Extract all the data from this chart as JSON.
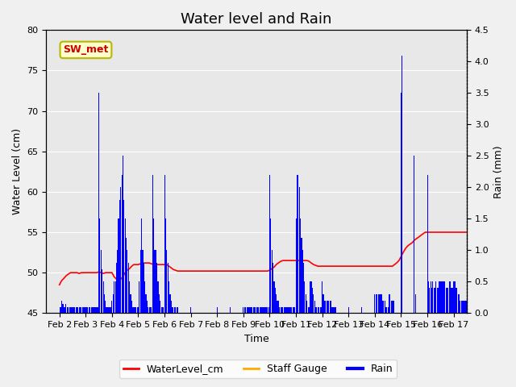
{
  "title": "Water level and Rain",
  "xlabel": "Time",
  "ylabel_left": "Water Level (cm)",
  "ylabel_right": "Rain (mm)",
  "ylim_left": [
    45,
    80
  ],
  "ylim_right": [
    0.0,
    4.5
  ],
  "yticks_left": [
    45,
    50,
    55,
    60,
    65,
    70,
    75,
    80
  ],
  "yticks_right": [
    0.0,
    0.5,
    1.0,
    1.5,
    2.0,
    2.5,
    3.0,
    3.5,
    4.0,
    4.5
  ],
  "background_color": "#f0f0f0",
  "plot_bg_color": "#e8e8e8",
  "annotation_box_text": "SW_met",
  "annotation_box_facecolor": "#ffffcc",
  "annotation_box_edgecolor": "#b8b800",
  "annotation_text_color": "#cc0000",
  "water_level_color": "#ff0000",
  "rain_color": "#0000ff",
  "staff_gauge_color": "#ffaa00",
  "legend_labels": [
    "WaterLevel_cm",
    "Staff Gauge",
    "Rain"
  ],
  "title_fontsize": 13,
  "axis_label_fontsize": 9,
  "tick_fontsize": 8,
  "x_tick_labels": [
    "Feb 2",
    "Feb 3",
    "Feb 4",
    "Feb 5",
    "Feb 6",
    "Feb 7",
    "Feb 8",
    "Feb 9",
    "Feb 10",
    "Feb 11",
    "Feb 12",
    "Feb 13",
    "Feb 14",
    "Feb 15",
    "Feb 16",
    "Feb 17"
  ],
  "x_tick_positions": [
    0,
    1,
    2,
    3,
    4,
    5,
    6,
    7,
    8,
    9,
    10,
    11,
    12,
    13,
    14,
    15
  ],
  "x_range": [
    -0.5,
    15.5
  ],
  "water_level_times": [
    0.0,
    0.08,
    0.17,
    0.25,
    0.33,
    0.42,
    0.5,
    0.58,
    0.67,
    0.75,
    0.83,
    0.92,
    1.0,
    1.08,
    1.17,
    1.25,
    1.33,
    1.42,
    1.5,
    1.58,
    1.67,
    1.75,
    1.83,
    1.92,
    2.0,
    2.08,
    2.17,
    2.25,
    2.33,
    2.42,
    2.5,
    2.58,
    2.67,
    2.75,
    2.83,
    2.92,
    3.0,
    3.08,
    3.17,
    3.25,
    3.33,
    3.42,
    3.5,
    3.58,
    3.67,
    3.75,
    3.83,
    3.92,
    4.0,
    4.08,
    4.17,
    4.25,
    4.33,
    4.42,
    4.5,
    4.58,
    4.67,
    4.75,
    4.83,
    4.92,
    5.0,
    5.08,
    5.17,
    5.25,
    5.33,
    5.42,
    5.5,
    5.58,
    5.67,
    5.75,
    5.83,
    5.92,
    6.0,
    6.08,
    6.17,
    6.25,
    6.33,
    6.42,
    6.5,
    6.58,
    6.67,
    6.75,
    6.83,
    6.92,
    7.0,
    7.08,
    7.17,
    7.25,
    7.33,
    7.42,
    7.5,
    7.58,
    7.67,
    7.75,
    7.83,
    7.92,
    8.0,
    8.08,
    8.17,
    8.25,
    8.33,
    8.42,
    8.5,
    8.58,
    8.67,
    8.75,
    8.83,
    8.92,
    9.0,
    9.08,
    9.17,
    9.25,
    9.33,
    9.42,
    9.5,
    9.58,
    9.67,
    9.75,
    9.83,
    9.92,
    10.0,
    10.08,
    10.17,
    10.25,
    10.33,
    10.42,
    10.5,
    10.58,
    10.67,
    10.75,
    10.83,
    10.92,
    11.0,
    11.08,
    11.17,
    11.25,
    11.33,
    11.42,
    11.5,
    11.58,
    11.67,
    11.75,
    11.83,
    11.92,
    12.0,
    12.08,
    12.17,
    12.25,
    12.33,
    12.42,
    12.5,
    12.58,
    12.67,
    12.75,
    12.83,
    12.92,
    13.0,
    13.08,
    13.17,
    13.25,
    13.33,
    13.42,
    13.5,
    13.58,
    13.67,
    13.75,
    13.83,
    13.92,
    14.0,
    14.08,
    14.17,
    14.25,
    14.33,
    14.42,
    14.5,
    14.58,
    14.67,
    14.75,
    14.83,
    14.92,
    15.0,
    15.08,
    15.17,
    15.25,
    15.33,
    15.42,
    15.5,
    15.58,
    15.67,
    15.75,
    15.83,
    15.92
  ],
  "water_level_values": [
    48.5,
    49.0,
    49.3,
    49.6,
    49.8,
    50.0,
    50.0,
    50.0,
    50.0,
    49.9,
    50.0,
    50.0,
    50.0,
    50.0,
    50.0,
    50.0,
    50.0,
    50.0,
    50.1,
    50.0,
    49.9,
    50.0,
    50.0,
    50.0,
    50.0,
    49.5,
    49.2,
    49.0,
    49.2,
    49.5,
    50.0,
    50.3,
    50.5,
    50.8,
    51.0,
    51.0,
    51.0,
    51.1,
    51.2,
    51.2,
    51.2,
    51.2,
    51.1,
    51.0,
    51.0,
    51.0,
    51.0,
    51.0,
    51.0,
    51.0,
    50.8,
    50.6,
    50.4,
    50.3,
    50.2,
    50.2,
    50.2,
    50.2,
    50.2,
    50.2,
    50.2,
    50.2,
    50.2,
    50.2,
    50.2,
    50.2,
    50.2,
    50.2,
    50.2,
    50.2,
    50.2,
    50.2,
    50.2,
    50.2,
    50.2,
    50.2,
    50.2,
    50.2,
    50.2,
    50.2,
    50.2,
    50.2,
    50.2,
    50.2,
    50.2,
    50.2,
    50.2,
    50.2,
    50.2,
    50.2,
    50.2,
    50.2,
    50.2,
    50.2,
    50.2,
    50.2,
    50.3,
    50.5,
    50.7,
    51.0,
    51.2,
    51.4,
    51.5,
    51.5,
    51.5,
    51.5,
    51.5,
    51.5,
    51.5,
    51.5,
    51.5,
    51.5,
    51.5,
    51.5,
    51.4,
    51.2,
    51.0,
    50.9,
    50.8,
    50.8,
    50.8,
    50.8,
    50.8,
    50.8,
    50.8,
    50.8,
    50.8,
    50.8,
    50.8,
    50.8,
    50.8,
    50.8,
    50.8,
    50.8,
    50.8,
    50.8,
    50.8,
    50.8,
    50.8,
    50.8,
    50.8,
    50.8,
    50.8,
    50.8,
    50.8,
    50.8,
    50.8,
    50.8,
    50.8,
    50.8,
    50.8,
    50.8,
    50.8,
    51.0,
    51.2,
    51.5,
    52.0,
    52.5,
    53.0,
    53.3,
    53.5,
    53.7,
    54.0,
    54.2,
    54.4,
    54.6,
    54.8,
    55.0,
    55.0,
    55.0,
    55.0,
    55.0,
    55.0,
    55.0,
    55.0,
    55.0,
    55.0,
    55.0,
    55.0,
    55.0,
    55.0,
    55.0,
    55.0,
    55.0,
    55.0,
    55.0,
    55.0,
    55.0,
    55.0,
    55.0,
    55.0,
    55.0
  ],
  "rain_times": [
    0.04,
    0.08,
    0.13,
    0.17,
    0.21,
    0.25,
    0.29,
    0.33,
    0.38,
    0.42,
    0.46,
    0.5,
    0.54,
    0.58,
    0.63,
    0.67,
    0.71,
    0.75,
    0.79,
    0.83,
    0.88,
    0.92,
    0.96,
    1.0,
    1.04,
    1.08,
    1.13,
    1.17,
    1.21,
    1.25,
    1.29,
    1.33,
    1.38,
    1.42,
    1.46,
    1.5,
    1.54,
    1.58,
    1.63,
    1.67,
    1.71,
    1.75,
    1.79,
    1.83,
    1.88,
    1.92,
    1.96,
    2.0,
    2.04,
    2.08,
    2.13,
    2.17,
    2.21,
    2.25,
    2.29,
    2.33,
    2.38,
    2.42,
    2.46,
    2.5,
    2.54,
    2.58,
    2.63,
    2.67,
    2.71,
    2.75,
    2.79,
    2.83,
    2.88,
    2.92,
    2.96,
    3.0,
    3.04,
    3.08,
    3.13,
    3.17,
    3.21,
    3.25,
    3.29,
    3.33,
    3.38,
    3.42,
    3.46,
    3.5,
    3.54,
    3.58,
    3.63,
    3.67,
    3.71,
    3.75,
    3.79,
    3.83,
    3.88,
    3.92,
    3.96,
    4.0,
    4.04,
    4.08,
    4.13,
    4.17,
    4.21,
    4.25,
    4.29,
    4.33,
    4.38,
    4.42,
    4.46,
    4.5,
    5.0,
    6.0,
    6.5,
    7.0,
    7.04,
    7.08,
    7.13,
    7.17,
    7.21,
    7.25,
    7.29,
    7.33,
    7.38,
    7.42,
    7.46,
    7.5,
    7.54,
    7.58,
    7.63,
    7.67,
    7.71,
    7.75,
    7.79,
    7.83,
    7.88,
    7.92,
    7.96,
    8.0,
    8.04,
    8.08,
    8.13,
    8.17,
    8.21,
    8.25,
    8.29,
    8.33,
    8.38,
    8.42,
    8.46,
    8.5,
    8.54,
    8.58,
    8.63,
    8.67,
    8.71,
    8.75,
    8.79,
    8.83,
    8.88,
    8.92,
    8.96,
    9.0,
    9.04,
    9.08,
    9.13,
    9.17,
    9.21,
    9.25,
    9.29,
    9.33,
    9.38,
    9.42,
    9.46,
    9.5,
    9.54,
    9.58,
    9.63,
    9.67,
    9.71,
    9.75,
    9.79,
    9.83,
    9.88,
    9.92,
    9.96,
    10.0,
    10.04,
    10.08,
    10.13,
    10.17,
    10.21,
    10.25,
    10.29,
    10.33,
    10.38,
    10.42,
    10.46,
    10.5,
    11.0,
    11.5,
    12.0,
    12.04,
    12.08,
    12.13,
    12.17,
    12.21,
    12.25,
    12.29,
    12.33,
    12.38,
    12.42,
    12.46,
    12.5,
    12.54,
    12.58,
    12.63,
    12.67,
    12.71,
    13.0,
    13.04,
    13.5,
    13.54,
    14.0,
    14.04,
    14.08,
    14.13,
    14.17,
    14.21,
    14.25,
    14.29,
    14.33,
    14.38,
    14.42,
    14.46,
    14.5,
    14.54,
    14.58,
    14.63,
    14.67,
    14.71,
    14.75,
    14.79,
    14.83,
    14.88,
    14.92,
    14.96,
    15.0,
    15.04,
    15.08,
    15.13,
    15.17,
    15.21,
    15.25,
    15.29,
    15.33,
    15.38,
    15.42,
    15.46,
    15.5,
    15.54,
    15.58,
    15.63,
    15.67,
    15.71,
    15.75,
    15.79,
    15.83,
    15.88,
    15.92,
    15.96
  ],
  "rain_values": [
    0.1,
    0.2,
    0.15,
    0.1,
    0.1,
    0.15,
    0.1,
    0.1,
    0.1,
    0.1,
    0.1,
    0.1,
    0.1,
    0.1,
    0.1,
    0.1,
    0.1,
    0.1,
    0.1,
    0.1,
    0.1,
    0.1,
    0.1,
    0.1,
    0.1,
    0.1,
    0.1,
    0.1,
    0.1,
    0.1,
    0.1,
    0.1,
    0.1,
    0.1,
    0.1,
    3.5,
    1.5,
    1.0,
    0.7,
    0.5,
    0.3,
    0.2,
    0.1,
    0.1,
    0.1,
    0.1,
    0.1,
    0.2,
    0.3,
    0.5,
    0.5,
    0.8,
    1.0,
    1.5,
    1.8,
    2.0,
    2.2,
    2.5,
    1.8,
    1.5,
    1.2,
    1.0,
    0.8,
    0.5,
    0.3,
    0.2,
    0.1,
    0.1,
    0.1,
    0.1,
    0.1,
    0.1,
    0.5,
    1.0,
    1.5,
    1.0,
    0.8,
    0.5,
    0.3,
    0.2,
    0.1,
    0.1,
    0.1,
    0.1,
    2.2,
    1.5,
    1.0,
    1.0,
    0.8,
    0.5,
    0.3,
    0.2,
    0.1,
    0.1,
    0.1,
    2.2,
    1.5,
    1.0,
    0.8,
    0.5,
    0.3,
    0.2,
    0.1,
    0.1,
    0.1,
    0.1,
    0.1,
    0.1,
    0.1,
    0.1,
    0.1,
    0.1,
    0.1,
    0.1,
    0.1,
    0.1,
    0.1,
    0.1,
    0.1,
    0.1,
    0.1,
    0.1,
    0.1,
    0.1,
    0.1,
    0.1,
    0.1,
    0.1,
    0.1,
    0.1,
    0.1,
    0.1,
    0.1,
    0.1,
    0.1,
    2.2,
    1.5,
    1.0,
    0.8,
    0.5,
    0.4,
    0.3,
    0.2,
    0.2,
    0.1,
    0.1,
    0.1,
    0.1,
    0.1,
    0.1,
    0.1,
    0.1,
    0.1,
    0.1,
    0.1,
    0.1,
    0.1,
    0.1,
    0.1,
    1.5,
    2.2,
    2.2,
    2.0,
    1.5,
    1.2,
    1.0,
    0.8,
    0.5,
    0.3,
    0.2,
    0.1,
    0.1,
    0.5,
    0.5,
    0.4,
    0.3,
    0.2,
    0.1,
    0.1,
    0.1,
    0.1,
    0.1,
    0.1,
    0.5,
    0.3,
    0.2,
    0.2,
    0.2,
    0.2,
    0.2,
    0.2,
    0.2,
    0.1,
    0.1,
    0.1,
    0.1,
    0.1,
    0.1,
    0.3,
    0.3,
    0.3,
    0.3,
    0.3,
    0.3,
    0.3,
    0.2,
    0.2,
    0.2,
    0.1,
    0.1,
    0.1,
    0.3,
    0.3,
    0.2,
    0.2,
    0.2,
    3.5,
    4.1,
    2.5,
    0.3,
    2.2,
    0.5,
    0.4,
    0.5,
    0.4,
    0.5,
    0.4,
    0.4,
    0.5,
    0.4,
    0.4,
    0.5,
    0.5,
    0.5,
    0.5,
    0.5,
    0.5,
    0.4,
    0.4,
    0.4,
    0.5,
    0.5,
    0.4,
    0.4,
    0.5,
    0.5,
    0.4,
    0.4,
    0.3,
    0.3,
    0.2,
    0.2,
    0.2,
    0.2,
    0.2,
    0.2,
    0.2,
    0.2,
    0.2,
    0.1,
    0.1,
    0.1,
    0.1,
    0.1,
    0.1,
    0.1,
    0.1,
    0.1
  ]
}
